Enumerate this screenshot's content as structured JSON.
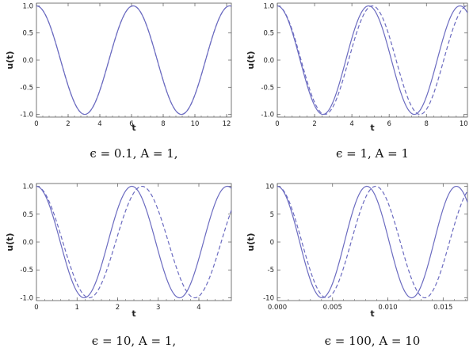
{
  "chart_data": [
    {
      "type": "line",
      "xlabel": "t",
      "ylabel": "u(t)",
      "caption": "ϵ = 0.1,   A = 1,",
      "xlim": [
        0,
        12.3
      ],
      "ylim": [
        -1.05,
        1.05
      ],
      "xticks": [
        "0",
        "2",
        "4",
        "6",
        "8",
        "10",
        "12"
      ],
      "yticks": [
        "1.0",
        "0.5",
        "0.0",
        "-0.5",
        "-1.0"
      ],
      "series": [
        {
          "style": "solid",
          "amplitude": 1,
          "period": 6.1
        },
        {
          "style": "dashed",
          "amplitude": 1,
          "period": 6.1
        }
      ]
    },
    {
      "type": "line",
      "xlabel": "t",
      "ylabel": "u(t)",
      "caption": "ϵ = 1,   A = 1",
      "xlim": [
        0,
        10.2
      ],
      "ylim": [
        -1.05,
        1.05
      ],
      "xticks": [
        "0",
        "2",
        "4",
        "6",
        "8",
        "10"
      ],
      "yticks": [
        "1.0",
        "0.5",
        "0.0",
        "-0.5",
        "-1.0"
      ],
      "series": [
        {
          "style": "solid",
          "amplitude": 1,
          "period": 4.9
        },
        {
          "style": "dashed",
          "amplitude": 1,
          "period": 5.1
        }
      ]
    },
    {
      "type": "line",
      "xlabel": "t",
      "ylabel": "u(t)",
      "caption": "ϵ = 10,   A = 1,",
      "xlim": [
        0,
        4.8
      ],
      "ylim": [
        -1.05,
        1.05
      ],
      "xticks": [
        "0",
        "1",
        "2",
        "3",
        "4"
      ],
      "yticks": [
        "1.0",
        "0.5",
        "0.0",
        "-0.5",
        "-1.0"
      ],
      "series": [
        {
          "style": "solid",
          "amplitude": 1,
          "period": 2.35
        },
        {
          "style": "dashed",
          "amplitude": 1,
          "period": 2.6
        }
      ]
    },
    {
      "type": "line",
      "xlabel": "t",
      "ylabel": "u(t)",
      "caption": "ϵ = 100,   A = 10",
      "xlim": [
        0,
        0.0172
      ],
      "ylim": [
        -10.5,
        10.5
      ],
      "xticks": [
        "0.000",
        "0.005",
        "0.010",
        "0.015"
      ],
      "yticks": [
        "10",
        "5",
        "0",
        "-5",
        "-10"
      ],
      "series": [
        {
          "style": "solid",
          "amplitude": 10,
          "period": 0.0081
        },
        {
          "style": "dashed",
          "amplitude": 10,
          "period": 0.0089
        }
      ]
    }
  ],
  "colors": {
    "line": "#6b6bc0",
    "axes": "#555555",
    "grid": "#bbbbbb"
  }
}
